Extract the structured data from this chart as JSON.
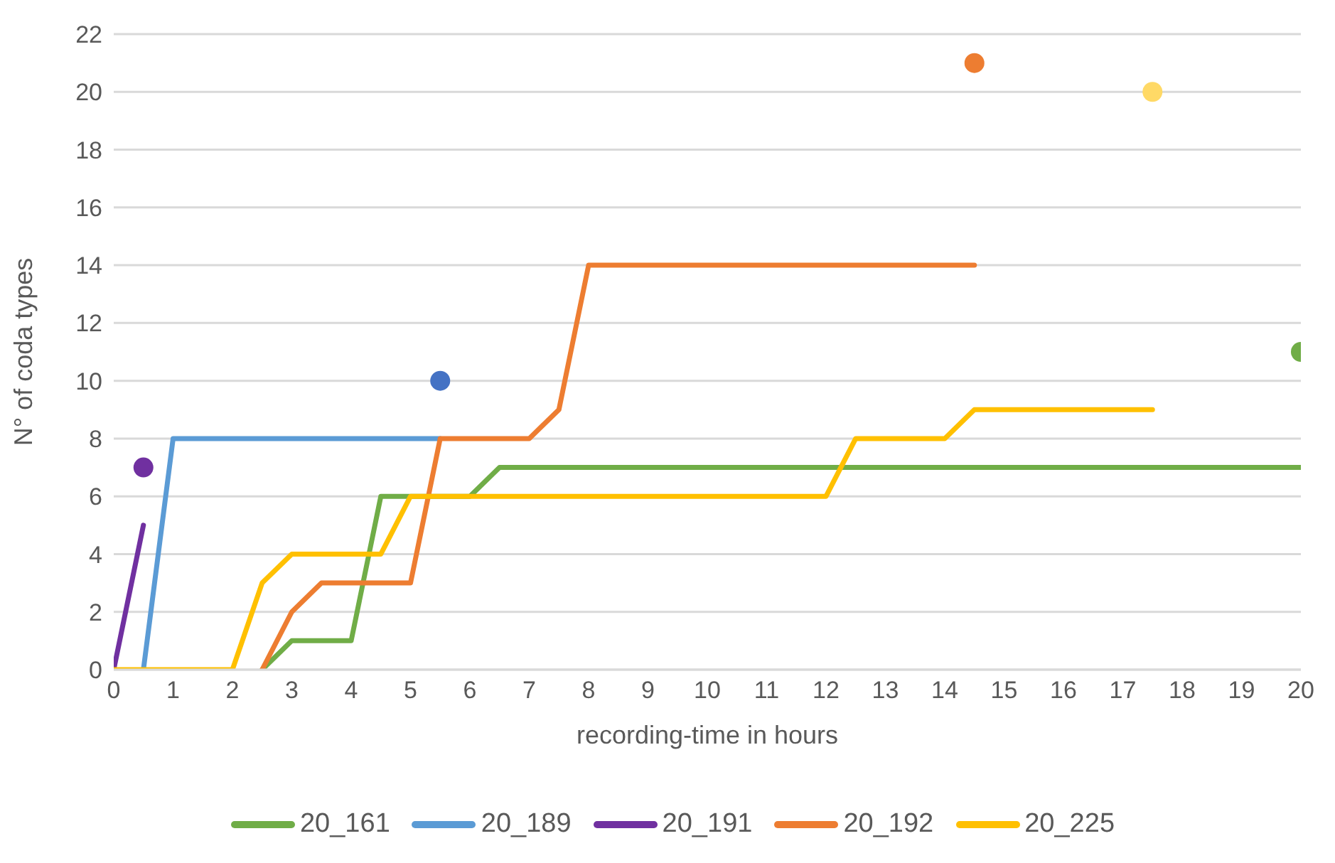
{
  "chart_data": {
    "type": "line",
    "xlabel": "recording-time in hours",
    "ylabel": "N° of coda types",
    "xlim": [
      0,
      20
    ],
    "xticks": [
      0,
      1,
      2,
      3,
      4,
      5,
      6,
      7,
      8,
      9,
      10,
      11,
      12,
      13,
      14,
      15,
      16,
      17,
      18,
      19,
      20
    ],
    "ylim": [
      0,
      22
    ],
    "yticks": [
      0,
      2,
      4,
      6,
      8,
      10,
      12,
      14,
      16,
      18,
      20,
      22
    ],
    "grid": "y",
    "legend": "bottom",
    "line_style": "solid",
    "series": [
      {
        "name": "20_161",
        "color": "#70ad47",
        "x": [
          2.5,
          3,
          3.5,
          4,
          4.5,
          5,
          6,
          6.5,
          7,
          8,
          9,
          10,
          11,
          12,
          13,
          14,
          15,
          16,
          17,
          18,
          19,
          20
        ],
        "values": [
          0,
          1,
          1,
          1,
          6,
          6,
          6,
          7,
          7,
          7,
          7,
          7,
          7,
          7,
          7,
          7,
          7,
          7,
          7,
          7,
          7,
          7
        ]
      },
      {
        "name": "20_189",
        "color": "#5b9bd5",
        "x": [
          0.5,
          1,
          1.5,
          2,
          3,
          4,
          5,
          5.5
        ],
        "values": [
          0,
          8,
          8,
          8,
          8,
          8,
          8,
          8
        ]
      },
      {
        "name": "20_191",
        "color": "#7030a0",
        "x": [
          0,
          0.5
        ],
        "values": [
          0,
          5
        ]
      },
      {
        "name": "20_192",
        "color": "#ed7d31",
        "x": [
          2.5,
          3,
          3.5,
          4,
          4.5,
          5,
          5.5,
          6,
          6.5,
          7,
          7.5,
          8,
          9,
          10,
          11,
          12,
          13,
          14,
          14.5
        ],
        "values": [
          0,
          2,
          3,
          3,
          3,
          3,
          8,
          8,
          8,
          8,
          9,
          14,
          14,
          14,
          14,
          14,
          14,
          14,
          14
        ]
      },
      {
        "name": "20_225",
        "color": "#ffc000",
        "x": [
          0,
          0.5,
          1,
          1.5,
          2,
          2.5,
          3,
          3.5,
          4,
          4.5,
          5,
          6,
          7,
          8,
          9,
          10,
          11,
          12,
          12.5,
          13,
          14,
          14.5,
          15,
          16,
          17,
          17.5
        ],
        "values": [
          0,
          0,
          0,
          0,
          0,
          3,
          4,
          4,
          4,
          4,
          6,
          6,
          6,
          6,
          6,
          6,
          6,
          6,
          8,
          8,
          8,
          9,
          9,
          9,
          9,
          9
        ]
      },
      {
        "type": "scatter",
        "marker": "circle",
        "color": "#7030a0",
        "x": [
          0.5
        ],
        "values": [
          7
        ]
      },
      {
        "type": "scatter",
        "marker": "circle",
        "color": "#4472c4",
        "x": [
          5.5
        ],
        "values": [
          10
        ]
      },
      {
        "type": "scatter",
        "marker": "circle",
        "color": "#ed7d31",
        "x": [
          14.5
        ],
        "values": [
          21
        ]
      },
      {
        "type": "scatter",
        "marker": "circle",
        "color": "#ffd966",
        "x": [
          17.5
        ],
        "values": [
          20
        ]
      },
      {
        "type": "scatter",
        "marker": "circle",
        "color": "#70ad47",
        "x": [
          20
        ],
        "values": [
          11
        ]
      }
    ]
  }
}
